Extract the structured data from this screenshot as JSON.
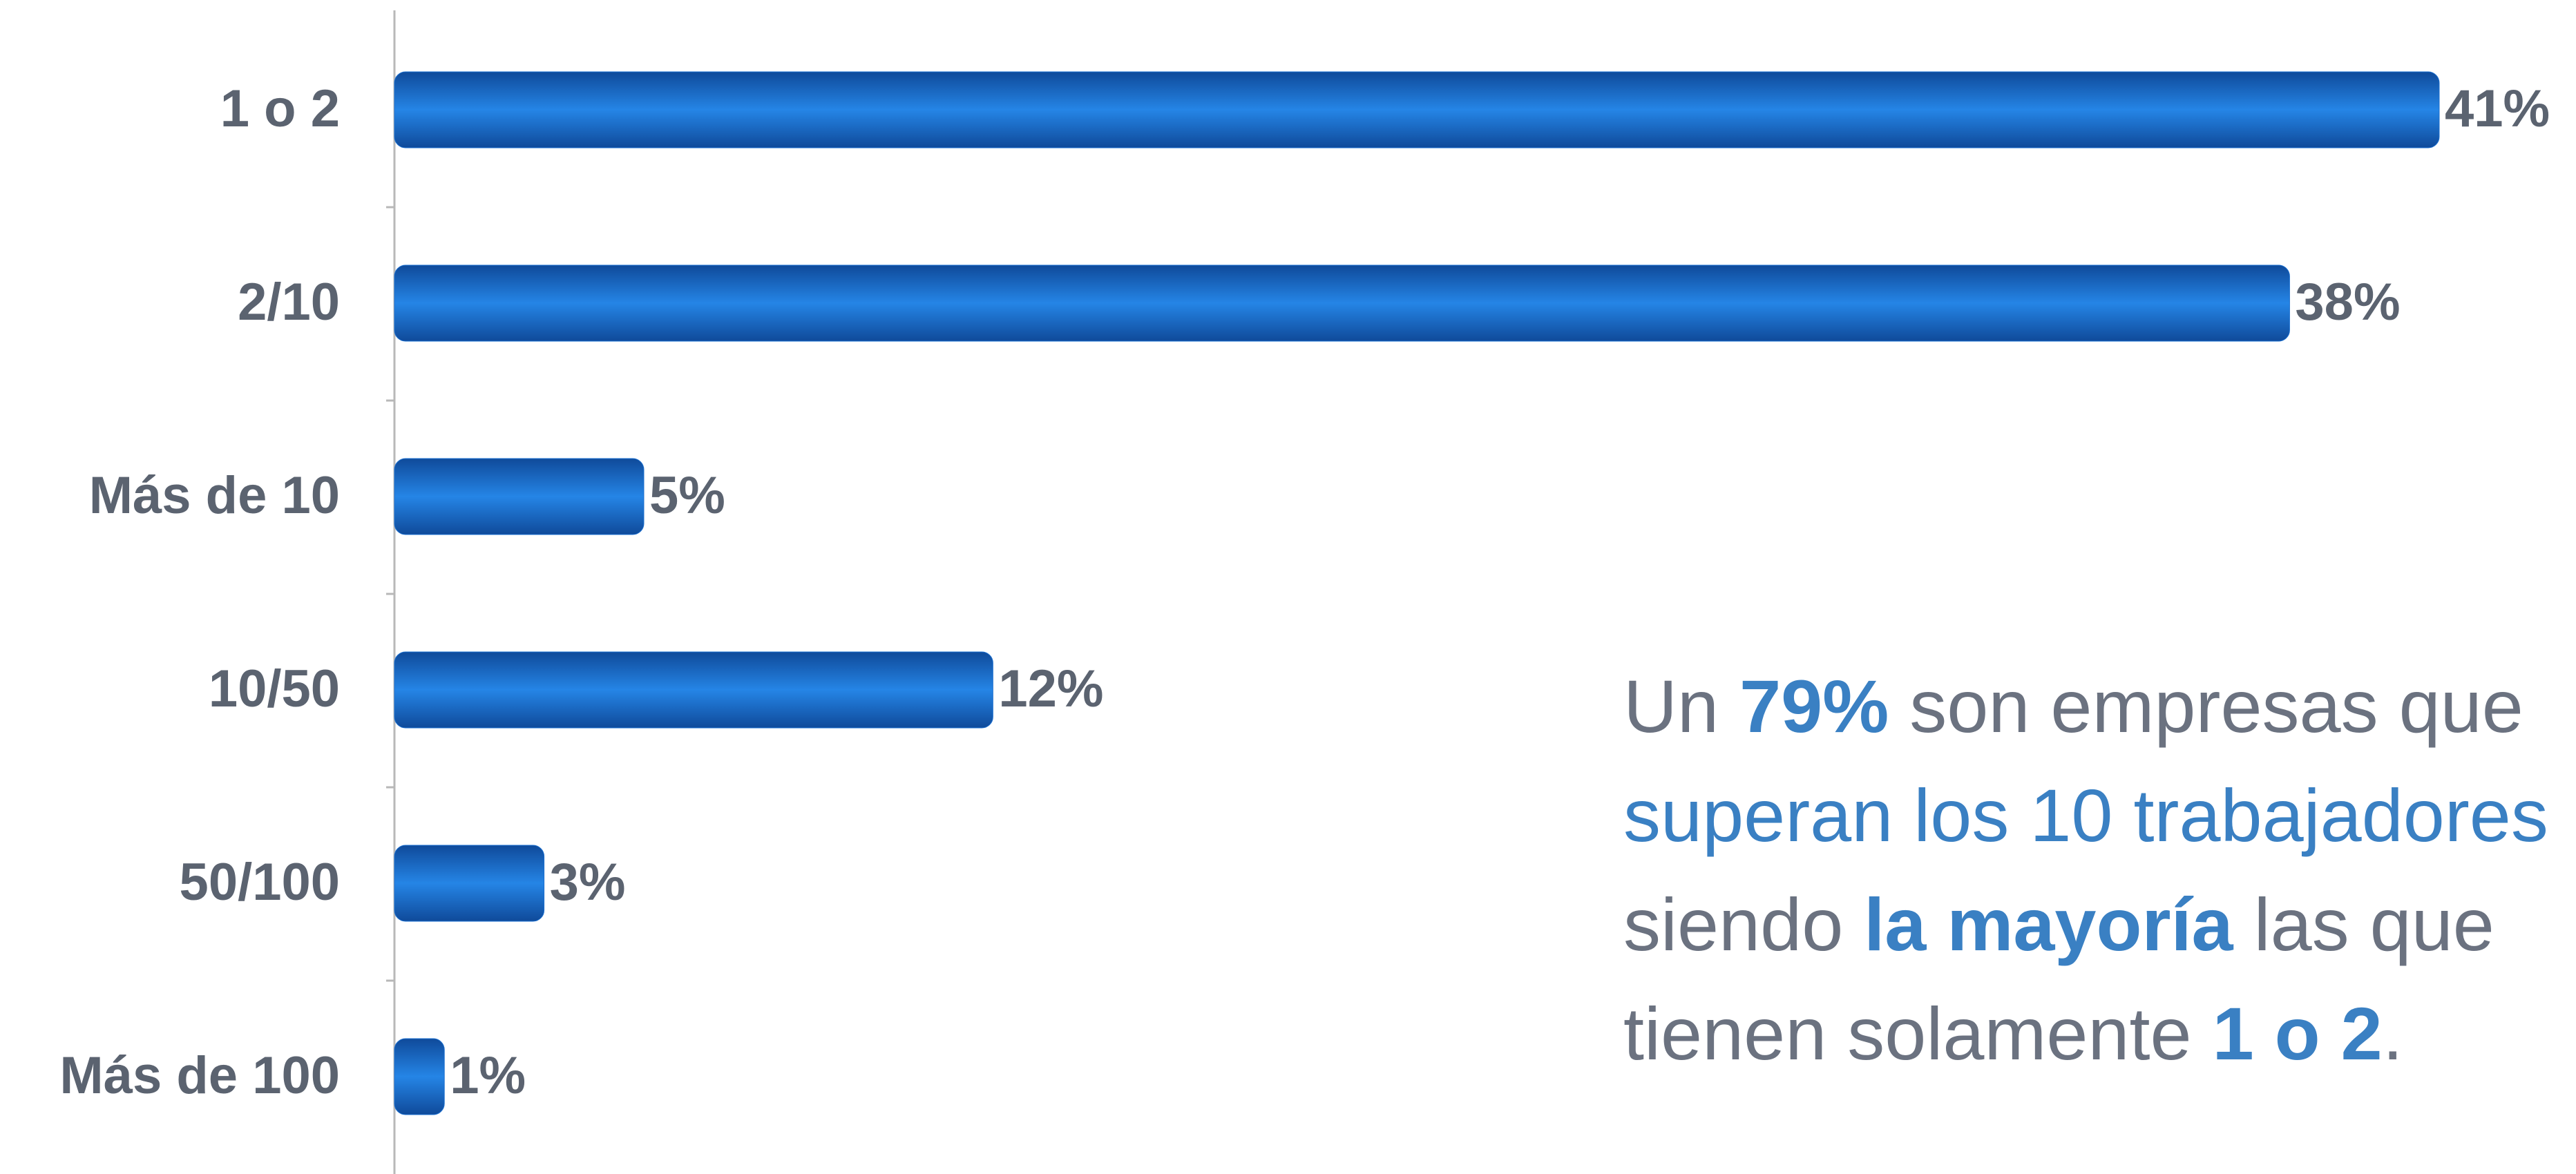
{
  "chart_data": {
    "type": "bar",
    "orientation": "horizontal",
    "categories": [
      "1 o 2",
      "2/10",
      "Más de 10",
      "10/50",
      "50/100",
      "Más de 100"
    ],
    "values": [
      41,
      38,
      5,
      12,
      3,
      1
    ],
    "value_labels": [
      "41%",
      "38%",
      "5%",
      "12%",
      "3%",
      "1%"
    ],
    "color": "#1a6fd0",
    "xlim": [
      0,
      41
    ],
    "annotation": [
      [
        {
          "text": "Un ",
          "bold": false,
          "color": "#6b7280"
        },
        {
          "text": "79%",
          "bold": true,
          "color": "#3a80c3"
        },
        {
          "text": " son empresas que",
          "bold": false,
          "color": "#6b7280"
        }
      ],
      [
        {
          "text": "superan los 10 trabajadores",
          "bold": false,
          "color": "#3a80c3"
        }
      ],
      [
        {
          "text": "siendo ",
          "bold": false,
          "color": "#6b7280"
        },
        {
          "text": "la mayoría",
          "bold": true,
          "color": "#3a80c3"
        },
        {
          "text": " las que",
          "bold": false,
          "color": "#6b7280"
        }
      ],
      [
        {
          "text": "tienen solamente ",
          "bold": false,
          "color": "#6b7280"
        },
        {
          "text": "1 o 2",
          "bold": true,
          "color": "#3a80c3"
        },
        {
          "text": ".",
          "bold": false,
          "color": "#6b7280"
        }
      ]
    ]
  }
}
